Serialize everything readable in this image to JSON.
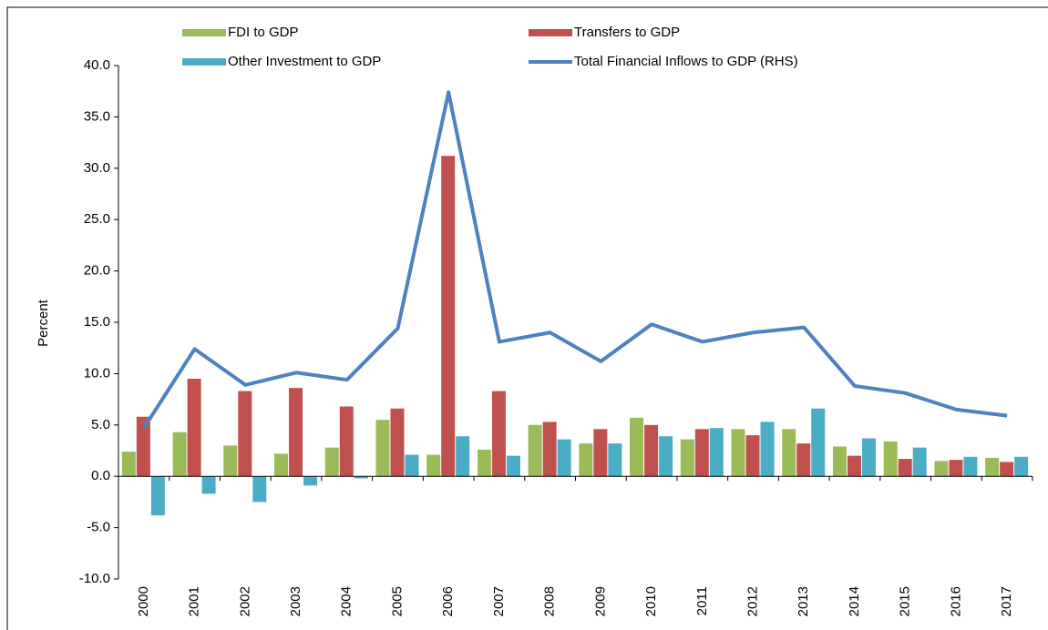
{
  "chart_data": {
    "type": "bar",
    "y_label": "Percent",
    "categories": [
      "2000",
      "2001",
      "2002",
      "2003",
      "2004",
      "2005",
      "2006",
      "2007",
      "2008",
      "2009",
      "2010",
      "2011",
      "2012",
      "2013",
      "2014",
      "2015",
      "2016",
      "2017"
    ],
    "series": [
      {
        "name": "FDI to GDP",
        "color": "#9bbb59",
        "type": "bar",
        "values": [
          2.4,
          4.3,
          3.0,
          2.2,
          2.8,
          5.5,
          2.1,
          2.6,
          5.0,
          3.2,
          5.7,
          3.6,
          4.6,
          4.6,
          2.9,
          3.4,
          1.5,
          1.8
        ]
      },
      {
        "name": "Transfers to GDP",
        "color": "#c0504d",
        "type": "bar",
        "values": [
          5.8,
          9.5,
          8.3,
          8.6,
          6.8,
          6.6,
          31.2,
          8.3,
          5.3,
          4.6,
          5.0,
          4.6,
          4.0,
          3.2,
          2.0,
          1.7,
          1.6,
          1.4
        ]
      },
      {
        "name": "Other Investment to GDP",
        "color": "#4bacc6",
        "type": "bar",
        "values": [
          -3.8,
          -1.7,
          -2.5,
          -0.9,
          -0.2,
          2.1,
          3.9,
          2.0,
          3.6,
          3.2,
          3.9,
          4.7,
          5.3,
          6.6,
          3.7,
          2.8,
          1.9,
          1.9
        ]
      },
      {
        "name": "Total Financial Inflows to GDP (RHS)",
        "color": "#4f81bd",
        "type": "line",
        "values": [
          4.7,
          12.4,
          8.9,
          10.1,
          9.4,
          14.4,
          37.4,
          13.1,
          14.0,
          11.2,
          14.8,
          13.1,
          14.0,
          14.5,
          8.8,
          8.1,
          6.5,
          5.9
        ]
      }
    ],
    "ylim": [
      -10,
      40
    ],
    "yticks": [
      {
        "value": -10,
        "label": "-10.0"
      },
      {
        "value": -5,
        "label": "-5.0"
      },
      {
        "value": 0,
        "label": "0.0"
      },
      {
        "value": 5,
        "label": "5.0"
      },
      {
        "value": 10,
        "label": "10.0"
      },
      {
        "value": 15,
        "label": "15.0"
      },
      {
        "value": 20,
        "label": "20.0"
      },
      {
        "value": 25,
        "label": "25.0"
      },
      {
        "value": 30,
        "label": "30.0"
      },
      {
        "value": 35,
        "label": "35.0"
      },
      {
        "value": 40,
        "label": "40.0"
      }
    ],
    "grid": false
  }
}
